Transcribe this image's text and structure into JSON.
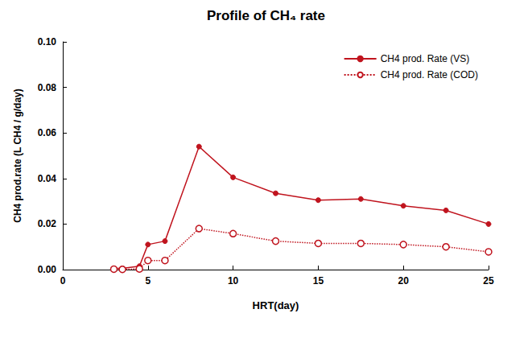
{
  "chart_data": {
    "type": "line",
    "title": "Profile of CH₄ rate",
    "x_label": "HRT(day)",
    "y_label": "CH4 prod.rate (L CH4 / g/day)",
    "xlim": [
      0,
      25
    ],
    "xticks": [
      0,
      5,
      10,
      15,
      20,
      25
    ],
    "ylim": [
      0,
      0.1
    ],
    "yticks": [
      {
        "value": 0,
        "label": "0.00"
      },
      {
        "value": 0.02,
        "label": "0.02"
      },
      {
        "value": 0.04,
        "label": "0.04"
      },
      {
        "value": 0.06,
        "label": "0.06"
      },
      {
        "value": 0.08,
        "label": "0.08"
      },
      {
        "value": 0.1,
        "label": "0.10"
      }
    ],
    "grid": false,
    "legend": "upper right",
    "series": [
      {
        "name": "CH4 prod. Rate (VS)",
        "color": "#c0141e",
        "marker": "filled_circle",
        "line_style": "solid",
        "x": [
          3.0,
          3.5,
          4.5,
          5,
          6,
          8,
          10,
          12.5,
          15,
          17.5,
          20,
          22.5,
          25
        ],
        "values": [
          0.0005,
          0.0005,
          0.0015,
          0.011,
          0.0125,
          0.054,
          0.0405,
          0.0335,
          0.0305,
          0.031,
          0.028,
          0.026,
          0.02
        ]
      },
      {
        "name": "CH4 prod. Rate (COD)",
        "color": "#c0141e",
        "marker": "open_circle",
        "line_style": "dotted",
        "x": [
          3.0,
          3.5,
          4.5,
          5,
          6,
          8,
          10,
          12.5,
          15,
          17.5,
          20,
          22.5,
          25
        ],
        "values": [
          0.0002,
          0.0001,
          0.0003,
          0.004,
          0.004,
          0.018,
          0.0158,
          0.0125,
          0.0115,
          0.0115,
          0.011,
          0.01,
          0.0078
        ]
      }
    ]
  }
}
